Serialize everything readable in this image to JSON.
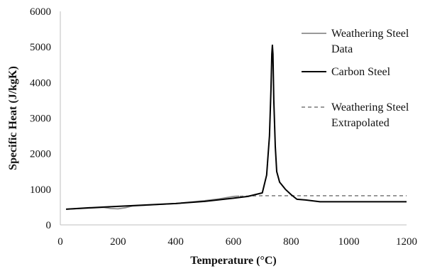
{
  "chart_data": {
    "type": "line",
    "title": "",
    "xlabel": "Temperature (°C)",
    "ylabel": "Specific Heat (J/kgK)",
    "xlim": [
      0,
      1200
    ],
    "ylim": [
      0,
      6000
    ],
    "x_ticks": [
      0,
      200,
      400,
      600,
      800,
      1000,
      1200
    ],
    "y_ticks": [
      0,
      1000,
      2000,
      3000,
      4000,
      5000,
      6000
    ],
    "grid": false,
    "legend_position": "right",
    "series": [
      {
        "name_lines": [
          "Weathering Steel",
          "Data"
        ],
        "color": "#8c8c8c",
        "dash": "solid",
        "points": [
          [
            20,
            440
          ],
          [
            100,
            470
          ],
          [
            150,
            490
          ],
          [
            175,
            460
          ],
          [
            200,
            450
          ],
          [
            225,
            480
          ],
          [
            250,
            530
          ],
          [
            300,
            555
          ],
          [
            400,
            600
          ],
          [
            500,
            680
          ],
          [
            550,
            730
          ],
          [
            600,
            800
          ],
          [
            620,
            810
          ]
        ]
      },
      {
        "name_lines": [
          "Carbon Steel"
        ],
        "color": "#000000",
        "dash": "solid",
        "points": [
          [
            20,
            440
          ],
          [
            100,
            480
          ],
          [
            150,
            500
          ],
          [
            200,
            520
          ],
          [
            300,
            560
          ],
          [
            400,
            600
          ],
          [
            500,
            660
          ],
          [
            600,
            750
          ],
          [
            650,
            800
          ],
          [
            700,
            900
          ],
          [
            715,
            1400
          ],
          [
            725,
            2500
          ],
          [
            730,
            3800
          ],
          [
            733,
            4800
          ],
          [
            735,
            5050
          ],
          [
            737,
            4800
          ],
          [
            740,
            3500
          ],
          [
            745,
            2200
          ],
          [
            750,
            1500
          ],
          [
            760,
            1200
          ],
          [
            780,
            1000
          ],
          [
            800,
            850
          ],
          [
            820,
            720
          ],
          [
            850,
            700
          ],
          [
            900,
            650
          ],
          [
            1000,
            650
          ],
          [
            1200,
            650
          ]
        ]
      },
      {
        "name_lines": [
          "Weathering Steel",
          "Extrapolated"
        ],
        "color": "#8c8c8c",
        "dash": "dashed",
        "points": [
          [
            600,
            800
          ],
          [
            650,
            810
          ],
          [
            700,
            820
          ],
          [
            800,
            820
          ],
          [
            1000,
            820
          ],
          [
            1200,
            820
          ]
        ]
      }
    ]
  }
}
